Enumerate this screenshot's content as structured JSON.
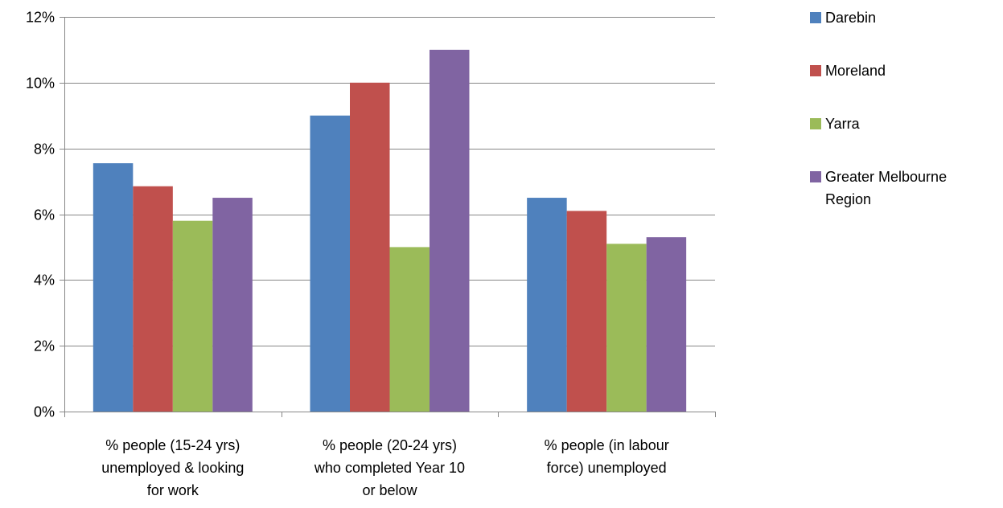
{
  "chart_data": {
    "type": "bar",
    "categories": [
      [
        "% people (15-24 yrs)",
        "unemployed & looking",
        "for work"
      ],
      [
        "% people (20-24 yrs)",
        "who completed Year 10",
        "or below"
      ],
      [
        "% people (in labour",
        "force) unemployed"
      ]
    ],
    "series": [
      {
        "name": "Darebin",
        "color": "#4f81bd",
        "values": [
          7.55,
          9.0,
          6.5
        ]
      },
      {
        "name": "Moreland",
        "color": "#c0504d",
        "values": [
          6.85,
          10.0,
          6.1
        ]
      },
      {
        "name": "Yarra",
        "color": "#9bbb59",
        "values": [
          5.8,
          5.0,
          5.1
        ]
      },
      {
        "name": "Greater Melbourne Region",
        "legend_lines": [
          "Greater Melbourne",
          "Region"
        ],
        "color": "#8064a2",
        "values": [
          6.5,
          11.0,
          5.3
        ]
      }
    ],
    "ylim": [
      0,
      12
    ],
    "yticks": [
      0,
      2,
      4,
      6,
      8,
      10,
      12
    ],
    "ytick_labels": [
      "0%",
      "2%",
      "4%",
      "6%",
      "8%",
      "10%",
      "12%"
    ],
    "grid": true,
    "legend_position": "right",
    "title": "",
    "xlabel": "",
    "ylabel": ""
  }
}
